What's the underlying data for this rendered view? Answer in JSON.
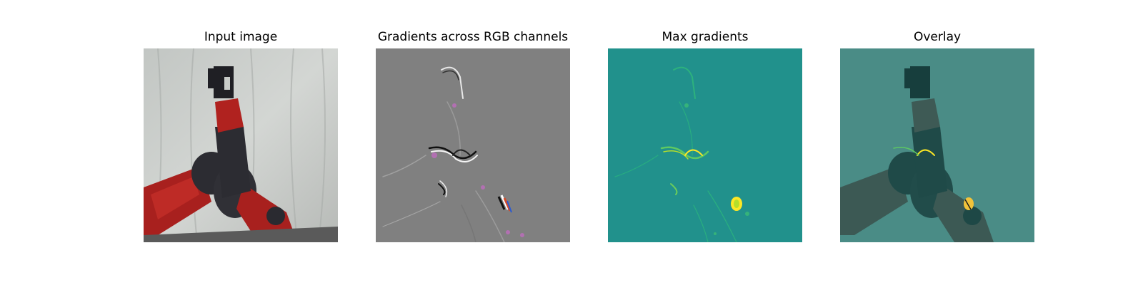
{
  "figure": {
    "panels": [
      {
        "id": "input",
        "title": "Input image"
      },
      {
        "id": "rgb-gradients",
        "title": "Gradients across RGB channels"
      },
      {
        "id": "max-gradients",
        "title": "Max gradients"
      },
      {
        "id": "overlay",
        "title": "Overlay"
      }
    ],
    "colors": {
      "background_cloth": "#c9ccc9",
      "robot_red": "#a8201e",
      "robot_dark": "#2c2c32",
      "gradient_gray": "#808080",
      "viridis_base": "#21918c",
      "viridis_peak": "#fde725",
      "overlay_tint": "#4a8c86"
    }
  }
}
